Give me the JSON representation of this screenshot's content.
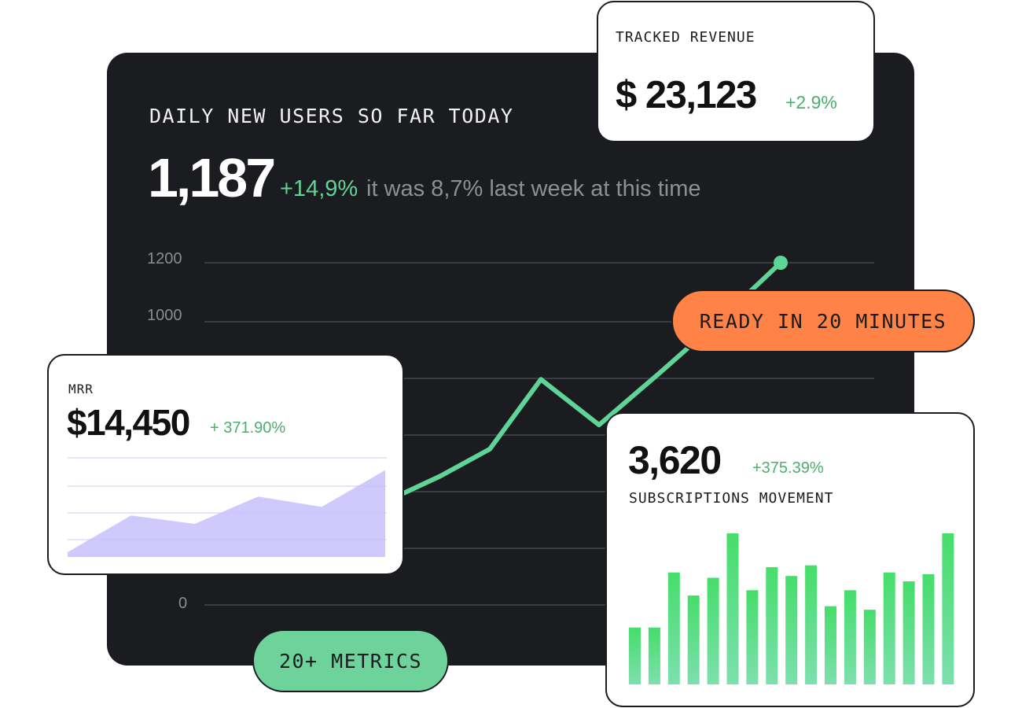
{
  "main": {
    "title": "DAILY NEW USERS SO FAR TODAY",
    "value": "1,187",
    "change": "+14,9%",
    "note": "it was 8,7% last week at this time"
  },
  "revenue": {
    "label": "TRACKED REVENUE",
    "value": "$ 23,123",
    "change": "+2.9%"
  },
  "ready_label": "READY IN 20 MINUTES",
  "mrr": {
    "label": "MRR",
    "value": "$14,450",
    "change": "+ 371.90%"
  },
  "subscriptions": {
    "value": "3,620",
    "change": "+375.39%",
    "label": "SUBSCRIPTIONS MOVEMENT"
  },
  "metrics_label": "20+ METRICS",
  "colors": {
    "panel": "#1b1c20",
    "positive": "#5fd497",
    "accent_orange": "#ff8346",
    "accent_green": "#6ed39b",
    "mrr_fill": "#c7c0fb",
    "bar": "#4ade72"
  },
  "chart_data": [
    {
      "type": "line",
      "y_ticks": [
        "1200",
        "1000",
        "0"
      ],
      "ylim": [
        0,
        1200
      ],
      "grid": true,
      "x": [
        0,
        1,
        2,
        3,
        4,
        5,
        6,
        7,
        8
      ],
      "values": [
        270,
        360,
        450,
        545,
        790,
        630,
        815,
        1010,
        1200
      ]
    },
    {
      "type": "area",
      "x": [
        0,
        1,
        2,
        3,
        4,
        5
      ],
      "values": [
        5,
        44,
        35,
        64,
        53,
        92
      ],
      "ylim": [
        0,
        100
      ],
      "grid": true
    },
    {
      "type": "bar",
      "values": [
        32,
        32,
        63,
        50,
        60,
        85,
        53,
        66,
        61,
        67,
        44,
        53,
        42,
        63,
        58,
        62,
        85
      ],
      "ylim": [
        0,
        85
      ]
    }
  ]
}
